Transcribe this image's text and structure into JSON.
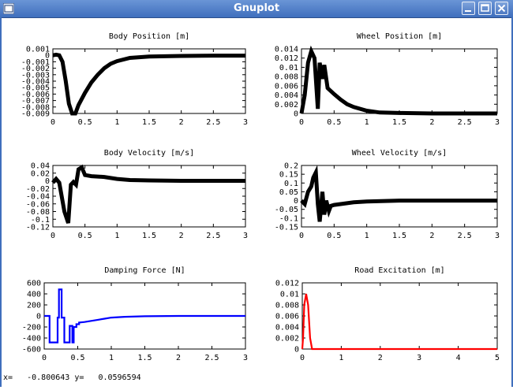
{
  "window": {
    "title": "Gnuplot"
  },
  "status": {
    "x_label": "x=",
    "x_value": "-0.800643",
    "y_label": "y=",
    "y_value": "0.0596594"
  },
  "colors": {
    "titlebar": "#4a7cc9",
    "black": "#000000",
    "blue": "#0000ff",
    "red": "#ff0000"
  },
  "chart_data": [
    {
      "id": "body-position",
      "type": "line",
      "title": "Body Position [m]",
      "color": "#000000",
      "thick": true,
      "xlim": [
        0,
        3
      ],
      "ylim": [
        -0.009,
        0.001
      ],
      "xticks": [
        "0",
        "0.5",
        "1",
        "1.5",
        "2",
        "2.5",
        "3"
      ],
      "yticks": [
        "0.001",
        "0",
        "-0.001",
        "-0.002",
        "-0.003",
        "-0.004",
        "-0.005",
        "-0.006",
        "-0.007",
        "-0.008",
        "-0.009"
      ],
      "x": [
        0,
        0.05,
        0.1,
        0.15,
        0.2,
        0.25,
        0.3,
        0.35,
        0.4,
        0.5,
        0.6,
        0.7,
        0.8,
        0.9,
        1.0,
        1.2,
        1.5,
        2.0,
        2.5,
        3.0
      ],
      "y": [
        0,
        0.0001,
        0,
        -0.001,
        -0.004,
        -0.0075,
        -0.009,
        -0.009,
        -0.0077,
        -0.0058,
        -0.0042,
        -0.003,
        -0.002,
        -0.0013,
        -0.0009,
        -0.0004,
        -0.0002,
        -0.0001,
        -5e-05,
        -5e-05
      ]
    },
    {
      "id": "wheel-position",
      "type": "line",
      "title": "Wheel Position [m]",
      "color": "#000000",
      "thick": true,
      "xlim": [
        0,
        3
      ],
      "ylim": [
        0,
        0.014
      ],
      "xticks": [
        "0",
        "0.5",
        "1",
        "1.5",
        "2",
        "2.5",
        "3"
      ],
      "yticks": [
        "0.014",
        "0.012",
        "0.01",
        "0.008",
        "0.006",
        "0.004",
        "0.002",
        "0"
      ],
      "x": [
        0,
        0.05,
        0.1,
        0.15,
        0.2,
        0.25,
        0.28,
        0.32,
        0.35,
        0.4,
        0.5,
        0.6,
        0.7,
        0.8,
        1.0,
        1.2,
        1.5,
        2.0,
        3.0
      ],
      "y": [
        0,
        0.004,
        0.011,
        0.0135,
        0.012,
        0.001,
        0.011,
        0.0075,
        0.0105,
        0.0055,
        0.0042,
        0.003,
        0.002,
        0.0014,
        0.0006,
        0.0002,
        0.0001,
        0,
        0
      ]
    },
    {
      "id": "body-velocity",
      "type": "line",
      "title": "Body Velocity [m/s]",
      "color": "#000000",
      "thick": true,
      "xlim": [
        0,
        3
      ],
      "ylim": [
        -0.12,
        0.04
      ],
      "xticks": [
        "0",
        "0.5",
        "1",
        "1.5",
        "2",
        "2.5",
        "3"
      ],
      "yticks": [
        "0.04",
        "0.02",
        "0",
        "-0.02",
        "-0.04",
        "-0.06",
        "-0.08",
        "-0.1",
        "-0.12"
      ],
      "x": [
        0,
        0.05,
        0.1,
        0.18,
        0.24,
        0.28,
        0.32,
        0.36,
        0.4,
        0.45,
        0.5,
        0.6,
        0.8,
        1.0,
        1.2,
        1.5,
        2.0,
        3.0
      ],
      "y": [
        -0.005,
        0.005,
        -0.005,
        -0.08,
        -0.11,
        -0.01,
        -0.003,
        -0.01,
        0.03,
        0.035,
        0.015,
        0.012,
        0.01,
        0.005,
        0.002,
        0.001,
        0,
        0
      ]
    },
    {
      "id": "wheel-velocity",
      "type": "line",
      "title": "Wheel Velocity [m/s]",
      "color": "#000000",
      "thick": true,
      "xlim": [
        0,
        3
      ],
      "ylim": [
        -0.15,
        0.2
      ],
      "xticks": [
        "0",
        "0.5",
        "1",
        "1.5",
        "2",
        "2.5",
        "3"
      ],
      "yticks": [
        "0.2",
        "0.15",
        "0.1",
        "0.05",
        "0",
        "-0.05",
        "-0.1",
        "-0.15"
      ],
      "x": [
        0,
        0.05,
        0.1,
        0.15,
        0.18,
        0.22,
        0.25,
        0.28,
        0.32,
        0.35,
        0.38,
        0.42,
        0.45,
        0.5,
        0.6,
        0.8,
        1.0,
        1.5,
        2.0,
        3.0
      ],
      "y": [
        0,
        -0.02,
        0.05,
        0.08,
        0.13,
        0.16,
        -0.02,
        -0.12,
        0.05,
        -0.08,
        0.0,
        -0.06,
        -0.03,
        -0.025,
        -0.02,
        -0.01,
        -0.005,
        0,
        0,
        0
      ]
    },
    {
      "id": "damping-force",
      "type": "line",
      "title": "Damping Force [N]",
      "color": "#0000ff",
      "thick": false,
      "xlim": [
        0,
        3
      ],
      "ylim": [
        -600,
        600
      ],
      "xticks": [
        "0",
        "0.5",
        "1",
        "1.5",
        "2",
        "2.5",
        "3"
      ],
      "yticks": [
        "600",
        "400",
        "200",
        "0",
        "-200",
        "-400",
        "-600"
      ],
      "x": [
        0,
        0.08,
        0.08,
        0.2,
        0.2,
        0.22,
        0.22,
        0.26,
        0.26,
        0.3,
        0.3,
        0.38,
        0.38,
        0.42,
        0.42,
        0.44,
        0.44,
        0.48,
        0.48,
        0.52,
        0.52,
        0.6,
        0.7,
        0.8,
        0.9,
        1.0,
        1.2,
        1.5,
        2.0,
        3.0
      ],
      "y": [
        0,
        0,
        -480,
        -480,
        -30,
        -30,
        480,
        480,
        -30,
        -30,
        -480,
        -480,
        -180,
        -180,
        -480,
        -480,
        -200,
        -200,
        -150,
        -150,
        -120,
        -110,
        -90,
        -70,
        -50,
        -30,
        -15,
        -5,
        0,
        0
      ]
    },
    {
      "id": "road-excitation",
      "type": "line",
      "title": "Road Excitation [m]",
      "color": "#ff0000",
      "thick": false,
      "xlim": [
        0,
        5
      ],
      "ylim": [
        0,
        0.012
      ],
      "xticks": [
        "0",
        "1",
        "2",
        "3",
        "4",
        "5"
      ],
      "yticks": [
        "0.012",
        "0.01",
        "0.008",
        "0.006",
        "0.004",
        "0.002",
        "0"
      ],
      "x": [
        0,
        0.02,
        0.05,
        0.1,
        0.15,
        0.2,
        0.25,
        5.0
      ],
      "y": [
        0,
        0.002,
        0.008,
        0.01,
        0.008,
        0.002,
        0,
        0
      ]
    }
  ]
}
